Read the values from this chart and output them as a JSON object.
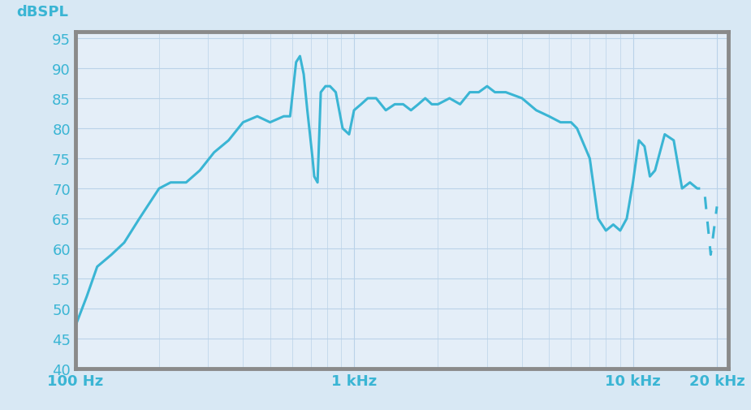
{
  "background_color": "#d8e8f4",
  "plot_bg_color": "#e4eef8",
  "grid_color": "#bad2e8",
  "curve_color": "#3ab5d4",
  "border_color": "#8a8a8a",
  "ylabel": "dBSPL",
  "ylim": [
    40,
    96
  ],
  "yticks": [
    40,
    45,
    50,
    55,
    60,
    65,
    70,
    75,
    80,
    85,
    90,
    95
  ],
  "xlim_log": [
    100,
    22000
  ],
  "xtick_positions": [
    100,
    1000,
    10000,
    20000
  ],
  "xtick_labels": [
    "100 Hz",
    "1 kHz",
    "10 kHz",
    "20 kHz"
  ],
  "tick_fontsize": 13,
  "ylabel_fontsize": 13,
  "curve_linewidth": 2.2,
  "freqs": [
    100,
    110,
    120,
    135,
    150,
    170,
    200,
    220,
    250,
    280,
    315,
    355,
    400,
    450,
    500,
    560,
    590,
    620,
    640,
    660,
    680,
    695,
    710,
    720,
    740,
    760,
    790,
    820,
    860,
    910,
    960,
    1000,
    1060,
    1120,
    1200,
    1300,
    1400,
    1500,
    1600,
    1700,
    1800,
    1900,
    2000,
    2200,
    2400,
    2600,
    2800,
    3000,
    3200,
    3500,
    4000,
    4500,
    5000,
    5500,
    6000,
    6300,
    7000,
    7500,
    8000,
    8500,
    9000,
    9500,
    10000,
    10500,
    11000,
    11500,
    12000,
    13000,
    14000,
    15000,
    16000,
    17000,
    18000,
    19000,
    20000
  ],
  "spl": [
    47,
    52,
    57,
    59,
    61,
    65,
    70,
    71,
    71,
    73,
    76,
    78,
    81,
    82,
    81,
    82,
    82,
    91,
    92,
    89,
    83,
    79,
    75,
    72,
    71,
    86,
    87,
    87,
    86,
    80,
    79,
    83,
    84,
    85,
    85,
    83,
    84,
    84,
    83,
    84,
    85,
    84,
    84,
    85,
    84,
    86,
    86,
    87,
    86,
    86,
    85,
    83,
    82,
    81,
    81,
    80,
    75,
    65,
    63,
    64,
    63,
    65,
    71,
    78,
    77,
    72,
    73,
    79,
    78,
    70,
    71,
    70,
    70,
    59,
    67
  ],
  "solid_end_idx": 70,
  "font_color": "#3ab5d4"
}
